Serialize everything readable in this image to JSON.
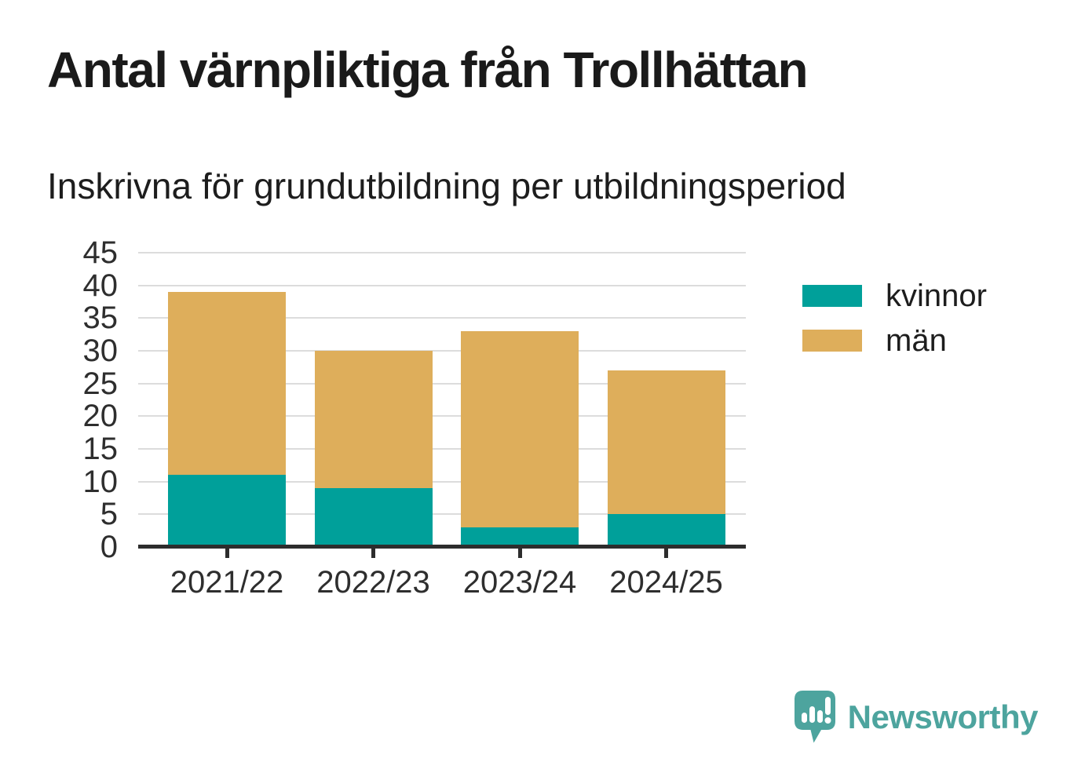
{
  "header": {
    "title": "Antal värnpliktiga från Trollhättan",
    "subtitle": "Inskrivna för grundutbildning per utbildningsperiod"
  },
  "chart_data": {
    "type": "bar",
    "stacked": true,
    "title": "Antal värnpliktiga från Trollhättan",
    "subtitle": "Inskrivna för grundutbildning per utbildningsperiod",
    "categories": [
      "2021/22",
      "2022/23",
      "2023/24",
      "2024/25"
    ],
    "series": [
      {
        "name": "kvinnor",
        "color": "#00a09a",
        "values": [
          11,
          9,
          3,
          5
        ]
      },
      {
        "name": "män",
        "color": "#deae5b",
        "values": [
          28,
          21,
          30,
          22
        ]
      }
    ],
    "stack_totals": [
      39,
      30,
      33,
      27
    ],
    "xlabel": "",
    "ylabel": "",
    "ylim": [
      0,
      45
    ],
    "yticks": [
      0,
      5,
      10,
      15,
      20,
      25,
      30,
      35,
      40,
      45
    ],
    "grid": true,
    "legend_position": "right"
  },
  "footer": {
    "brand": "Newsworthy"
  },
  "colors": {
    "kvinnor_teal": "#00a09a",
    "man_gold": "#deae5b",
    "brand_teal": "#4da49e",
    "title_text": "#1a1a1a",
    "axis_text": "#2e2e2e",
    "gridline": "#dcdcdc",
    "axis_line": "#2d2d2d",
    "background": "#ffffff"
  }
}
